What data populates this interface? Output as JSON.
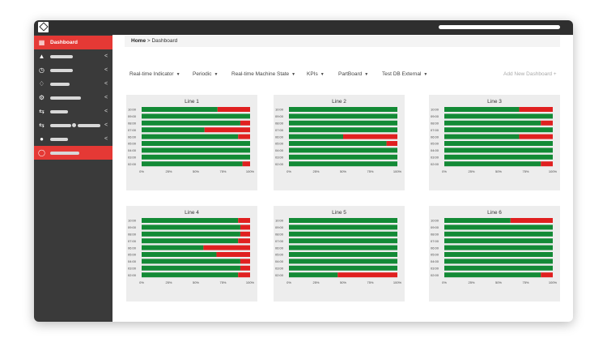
{
  "breadcrumb": {
    "home": "Home",
    "separator": ">",
    "current": "Dashboard"
  },
  "sidebar": {
    "active_label": "Dashboard",
    "items": [
      {
        "icon": "dashboard-icon",
        "label": "Dashboard"
      },
      {
        "icon": "car-icon"
      },
      {
        "icon": "clock-icon"
      },
      {
        "icon": "bell-icon"
      },
      {
        "icon": "gear-icon"
      },
      {
        "icon": "transfer-icon"
      },
      {
        "icon": "transfer-icon"
      },
      {
        "icon": "info-icon"
      },
      {
        "icon": "lightbulb-icon"
      }
    ]
  },
  "tabs": [
    {
      "label": "Real-time Indicator"
    },
    {
      "label": "Periodic"
    },
    {
      "label": "Real-time Machine State"
    },
    {
      "label": "KPIs"
    },
    {
      "label": "PartBoard"
    },
    {
      "label": "Test DB External"
    }
  ],
  "add_dashboard": "Add New Dashboard +",
  "colors": {
    "good": "#138a36",
    "bad": "#e02020",
    "accent": "#e53935",
    "sidebar": "#3a3a3a"
  },
  "chart_data": [
    {
      "type": "bar",
      "title": "Line 1",
      "categories": [
        "10:00",
        "09:00",
        "08:00",
        "07:00",
        "06:00",
        "05:00",
        "04:00",
        "03:00",
        "02:00"
      ],
      "series": [
        {
          "values": [
            70,
            100,
            91,
            58,
            89,
            100,
            100,
            100,
            93
          ]
        },
        {
          "values": [
            30,
            0,
            9,
            42,
            11,
            0,
            0,
            0,
            7
          ]
        }
      ],
      "xticks": [
        "0%",
        "25%",
        "50%",
        "75%",
        "100%"
      ]
    },
    {
      "type": "bar",
      "title": "Line 2",
      "categories": [
        "10:00",
        "09:00",
        "08:00",
        "07:00",
        "06:00",
        "05:00",
        "04:00",
        "03:00",
        "02:00"
      ],
      "series": [
        {
          "values": [
            100,
            100,
            100,
            100,
            50,
            90,
            100,
            100,
            100
          ]
        },
        {
          "values": [
            0,
            0,
            0,
            0,
            50,
            10,
            0,
            0,
            0
          ]
        }
      ],
      "xticks": [
        "0%",
        "25%",
        "50%",
        "75%",
        "100%"
      ]
    },
    {
      "type": "bar",
      "title": "Line 3",
      "categories": [
        "10:00",
        "09:00",
        "08:00",
        "07:00",
        "06:00",
        "05:00",
        "04:00",
        "03:00",
        "02:00"
      ],
      "series": [
        {
          "values": [
            69,
            100,
            89,
            100,
            69,
            100,
            100,
            100,
            89
          ]
        },
        {
          "values": [
            31,
            0,
            11,
            0,
            31,
            0,
            0,
            0,
            11
          ]
        }
      ],
      "xticks": [
        "0%",
        "25%",
        "50%",
        "75%",
        "100%"
      ]
    },
    {
      "type": "bar",
      "title": "Line 4",
      "categories": [
        "10:00",
        "09:00",
        "08:00",
        "07:00",
        "06:00",
        "05:00",
        "04:00",
        "03:00",
        "02:00"
      ],
      "series": [
        {
          "values": [
            89,
            91,
            91,
            89,
            57,
            69,
            91,
            91,
            89
          ]
        },
        {
          "values": [
            11,
            9,
            9,
            11,
            43,
            31,
            9,
            9,
            11
          ]
        }
      ],
      "xticks": [
        "0%",
        "25%",
        "50%",
        "75%",
        "100%"
      ]
    },
    {
      "type": "bar",
      "title": "Line 5",
      "categories": [
        "10:00",
        "09:00",
        "08:00",
        "07:00",
        "06:00",
        "05:00",
        "04:00",
        "03:00",
        "02:00"
      ],
      "series": [
        {
          "values": [
            100,
            100,
            100,
            100,
            100,
            100,
            100,
            100,
            45
          ]
        },
        {
          "values": [
            0,
            0,
            0,
            0,
            0,
            0,
            0,
            0,
            55
          ]
        }
      ],
      "xticks": [
        "0%",
        "25%",
        "50%",
        "75%",
        "100%"
      ]
    },
    {
      "type": "bar",
      "title": "Line 6",
      "categories": [
        "10:00",
        "09:00",
        "08:00",
        "07:00",
        "06:00",
        "05:00",
        "04:00",
        "03:00",
        "02:00"
      ],
      "series": [
        {
          "values": [
            61,
            100,
            100,
            100,
            100,
            100,
            100,
            100,
            89
          ]
        },
        {
          "values": [
            39,
            0,
            0,
            0,
            0,
            0,
            0,
            0,
            11
          ]
        }
      ],
      "xticks": [
        "0%",
        "25%",
        "50%",
        "75%",
        "100%"
      ]
    }
  ]
}
